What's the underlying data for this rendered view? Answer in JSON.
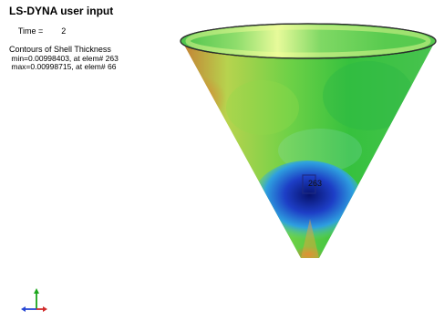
{
  "header": {
    "title": "LS-DYNA user input",
    "time_label": "Time =",
    "time_value": "2",
    "contour_label": "Contours of Shell Thickness",
    "min_text": " min=0.00998403, at elem# 263",
    "max_text": " max=0.00998715, at elem# 66"
  },
  "viewport": {
    "element_label": "263"
  },
  "colors": {
    "green": "#57c84a",
    "yellow_green": "#b5d84a",
    "orange": "#d28a30",
    "light_green": "#a6ee8a",
    "blue": "#2457d6",
    "deep_blue": "#0b1a9b",
    "highlight": "#1e2b84"
  }
}
